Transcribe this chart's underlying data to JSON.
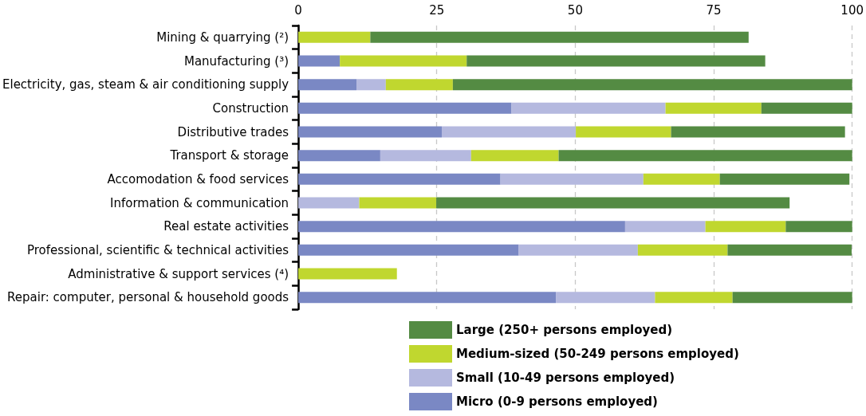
{
  "chart_data": {
    "type": "bar",
    "orientation": "horizontal",
    "stacked": true,
    "categories": [
      "Mining & quarrying (²)",
      "Manufacturing (³)",
      "Electricity, gas, steam & air conditioning supply",
      "Construction",
      "Distributive trades",
      "Transport & storage",
      "Accomodation & food services",
      "Information & communication",
      "Real estate activities",
      "Professional, scientific & technical activities",
      "Administrative & support services (⁴)",
      "Repair: computer, personal & household goods"
    ],
    "series": [
      {
        "name": "Micro (0-9 persons employed)",
        "color": "#7a88c4",
        "values": [
          null,
          7.5,
          10.5,
          38.5,
          25.9,
          14.8,
          36.5,
          null,
          59.0,
          39.8,
          null,
          46.5
        ]
      },
      {
        "name": "Small (10-49 persons employed)",
        "color": "#b5b9df",
        "values": [
          null,
          null,
          5.3,
          27.8,
          24.2,
          16.4,
          25.8,
          11.0,
          14.5,
          21.5,
          null,
          17.9
        ]
      },
      {
        "name": "Medium-sized (50-249 persons employed)",
        "color": "#c0d72f",
        "values": [
          13.0,
          22.9,
          12.1,
          17.3,
          17.2,
          15.8,
          13.8,
          13.9,
          14.5,
          16.2,
          17.8,
          14.0
        ]
      },
      {
        "name": "Large (250+ persons employed)",
        "color": "#548b43",
        "values": [
          68.3,
          53.9,
          72.1,
          16.4,
          31.4,
          53.0,
          23.4,
          63.8,
          12.0,
          22.4,
          null,
          21.6
        ]
      }
    ],
    "xlim": [
      0,
      100
    ],
    "xticks": [
      0,
      25,
      50,
      75,
      100
    ],
    "grid": "x",
    "legend": "bottom"
  }
}
